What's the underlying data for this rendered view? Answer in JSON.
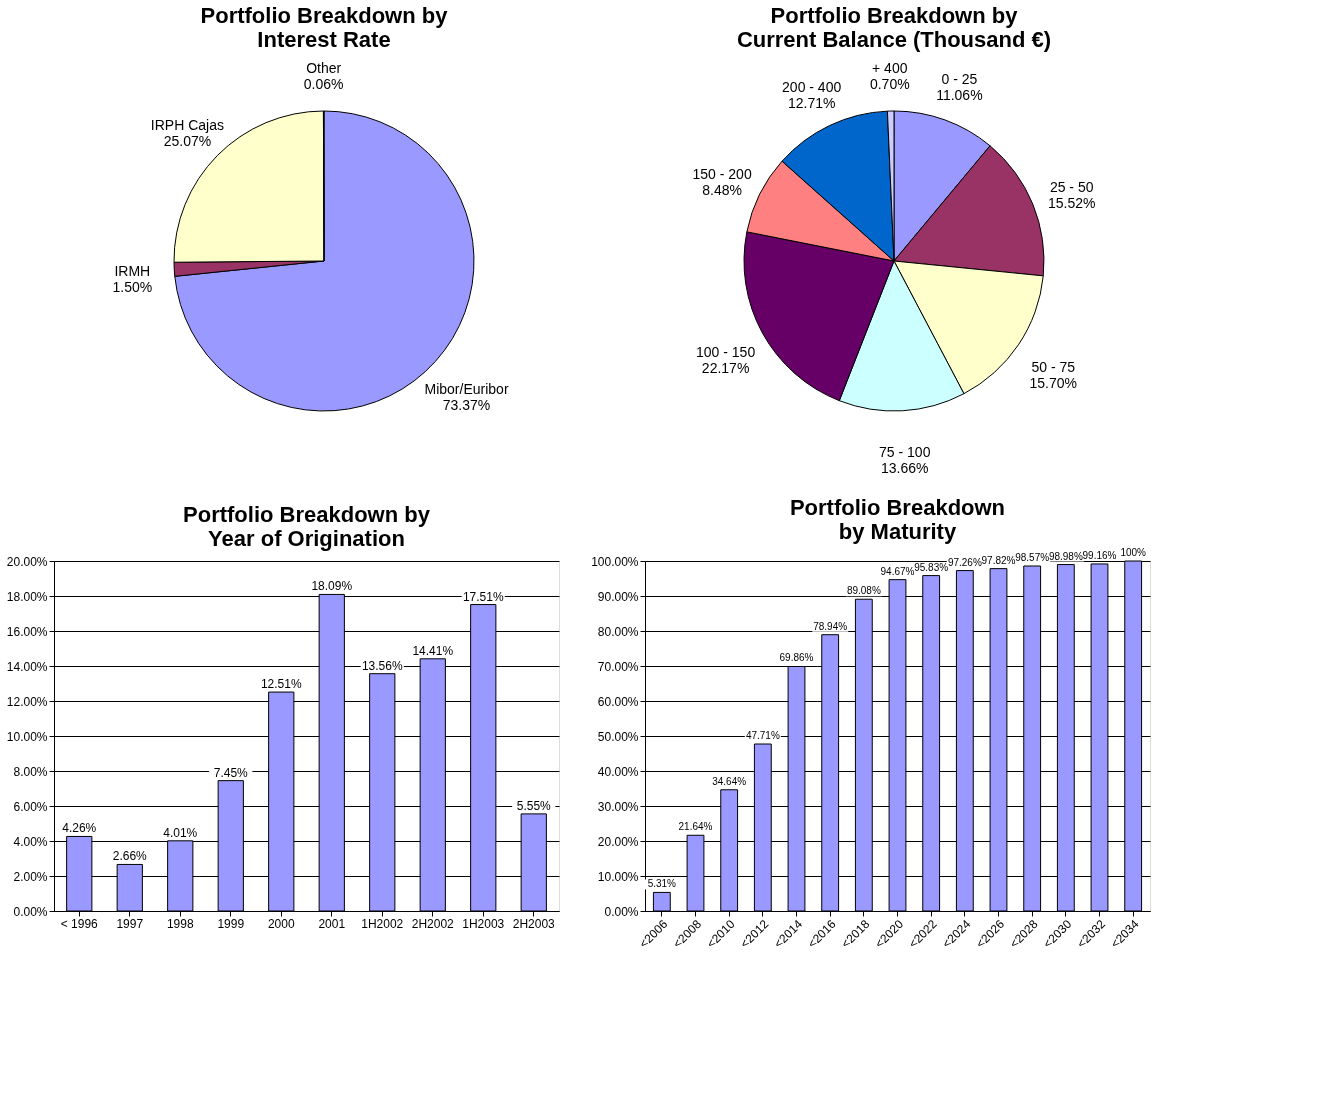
{
  "chart_data": [
    {
      "type": "pie",
      "title": "Portfolio Breakdown by\nInterest Rate",
      "categories": [
        "Mibor/Euribor",
        "IRMH",
        "IRPH Cajas",
        "Other"
      ],
      "values": [
        73.37,
        1.5,
        25.07,
        0.06
      ],
      "colors": [
        "#9999ff",
        "#993366",
        "#ffffcc",
        "#333333"
      ],
      "value_labels": [
        "73.37%",
        "1.50%",
        "25.07%",
        "0.06%"
      ],
      "legend": false
    },
    {
      "type": "pie",
      "title": "Portfolio Breakdown by\nCurrent Balance (Thousand €)",
      "categories": [
        "0 - 25",
        "25 - 50",
        "50 - 75",
        "75 - 100",
        "100 - 150",
        "150 - 200",
        "200 - 400",
        "+ 400"
      ],
      "values": [
        11.06,
        15.52,
        15.7,
        13.66,
        22.17,
        8.48,
        12.71,
        0.7
      ],
      "colors": [
        "#9999ff",
        "#993366",
        "#ffffcc",
        "#ccffff",
        "#660066",
        "#ff8080",
        "#0066cc",
        "#ccccff"
      ],
      "value_labels": [
        "11.06%",
        "15.52%",
        "15.70%",
        "13.66%",
        "22.17%",
        "8.48%",
        "12.71%",
        "0.70%"
      ],
      "legend": false
    },
    {
      "type": "bar",
      "title": "Portfolio Breakdown by\nYear of Origination",
      "categories": [
        "< 1996",
        "1997",
        "1998",
        "1999",
        "2000",
        "2001",
        "1H2002",
        "2H2002",
        "1H2003",
        "2H2003"
      ],
      "values": [
        4.26,
        2.66,
        4.01,
        7.45,
        12.51,
        18.09,
        13.56,
        14.41,
        17.51,
        5.55
      ],
      "color": "#9999ff",
      "value_labels": [
        "4.26%",
        "2.66%",
        "4.01%",
        "7.45%",
        "12.51%",
        "18.09%",
        "13.56%",
        "14.41%",
        "17.51%",
        "5.55%"
      ],
      "ylim": [
        0,
        20
      ],
      "yticks": [
        {
          "value": 0,
          "label": "0.00%"
        },
        {
          "value": 2,
          "label": "2.00%"
        },
        {
          "value": 4,
          "label": "4.00%"
        },
        {
          "value": 6,
          "label": "6.00%"
        },
        {
          "value": 8,
          "label": "8.00%"
        },
        {
          "value": 10,
          "label": "10.00%"
        },
        {
          "value": 12,
          "label": "12.00%"
        },
        {
          "value": 14,
          "label": "14.00%"
        },
        {
          "value": 16,
          "label": "16.00%"
        },
        {
          "value": 18,
          "label": "18.00%"
        },
        {
          "value": 20,
          "label": "20.00%"
        }
      ],
      "grid": "y",
      "legend": false
    },
    {
      "type": "bar",
      "title": "Portfolio Breakdown\nby Maturity",
      "categories": [
        "<2006",
        "<2008",
        "<2010",
        "<2012",
        "<2014",
        "<2016",
        "<2018",
        "<2020",
        "<2022",
        "<2024",
        "<2026",
        "<2028",
        "<2030",
        "<2032",
        "<2034"
      ],
      "values": [
        5.31,
        21.64,
        34.64,
        47.71,
        69.86,
        78.94,
        89.08,
        94.67,
        95.83,
        97.26,
        97.82,
        98.57,
        98.98,
        99.16,
        100
      ],
      "color": "#9999ff",
      "value_labels": [
        "5.31%",
        "21.64%",
        "34.64%",
        "47.71%",
        "69.86%",
        "78.94%",
        "89.08%",
        "94.67%",
        "95.83%",
        "97.26%",
        "97.82%",
        "98.57%",
        "98.98%",
        "99.16%",
        "100%"
      ],
      "ylim": [
        0,
        100
      ],
      "yticks": [
        {
          "value": 0,
          "label": "0.00%"
        },
        {
          "value": 10,
          "label": "10.00%"
        },
        {
          "value": 20,
          "label": "20.00%"
        },
        {
          "value": 30,
          "label": "30.00%"
        },
        {
          "value": 40,
          "label": "40.00%"
        },
        {
          "value": 50,
          "label": "50.00%"
        },
        {
          "value": 60,
          "label": "60.00%"
        },
        {
          "value": 70,
          "label": "70.00%"
        },
        {
          "value": 80,
          "label": "80.00%"
        },
        {
          "value": 90,
          "label": "90.00%"
        },
        {
          "value": 100,
          "label": "100.00%"
        }
      ],
      "grid": "y",
      "legend": false
    }
  ]
}
